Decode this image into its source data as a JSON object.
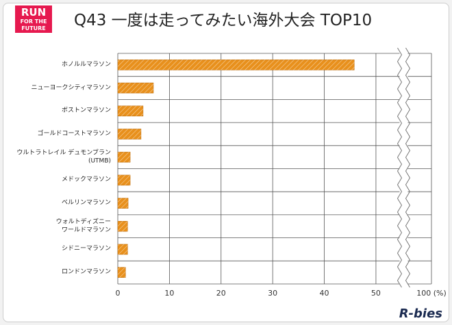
{
  "logo": [
    "RUN",
    "FOR THE",
    "FUTURE"
  ],
  "brand": "R-bies",
  "chart_data": {
    "type": "bar",
    "orientation": "horizontal",
    "title": "Q43 一度は走ってみたい海外大会 TOP10",
    "categories": [
      "ホノルルマラソン",
      "ニューヨークシティマラソン",
      "ボストンマラソン",
      "ゴールドコーストマラソン",
      "ウルトラトレイル デュモンブラン\n(UTMB)",
      "メドックマラソン",
      "ベルリンマラソン",
      "ウォルトディズニー\nワールドマラソン",
      "シドニーマラソン",
      "ロンドンマラソン"
    ],
    "values": [
      45.8,
      6.9,
      4.9,
      4.5,
      2.4,
      2.4,
      2.0,
      1.9,
      1.9,
      1.5
    ],
    "color": "#e8901c",
    "xlim": [
      0,
      100
    ],
    "xticks": [
      0,
      10,
      20,
      30,
      40,
      50,
      {
        "value": 100,
        "label": "100 (%)"
      }
    ],
    "axis_break": true,
    "grid": true
  }
}
